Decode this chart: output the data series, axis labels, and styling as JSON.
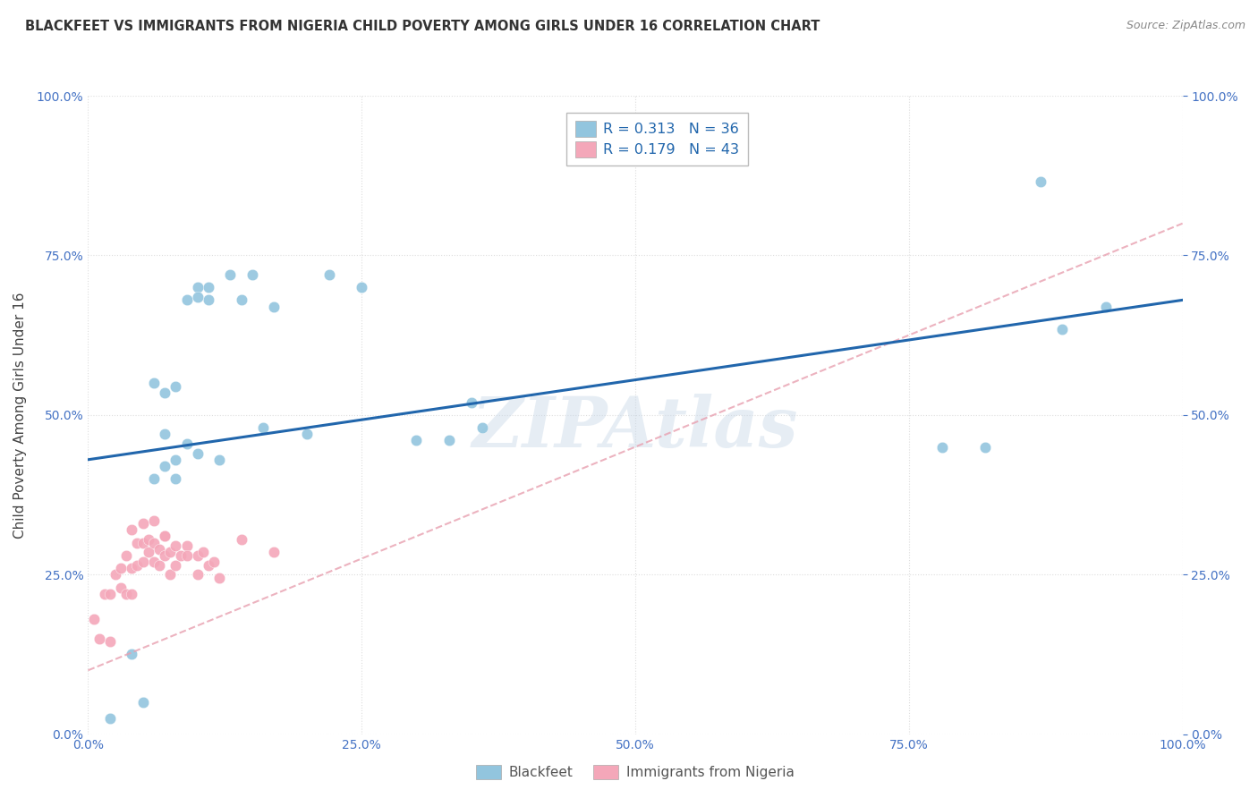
{
  "title": "BLACKFEET VS IMMIGRANTS FROM NIGERIA CHILD POVERTY AMONG GIRLS UNDER 16 CORRELATION CHART",
  "source": "Source: ZipAtlas.com",
  "ylabel": "Child Poverty Among Girls Under 16",
  "watermark": "ZIPAtlas",
  "blackfeet_R": 0.313,
  "blackfeet_N": 36,
  "nigeria_R": 0.179,
  "nigeria_N": 43,
  "blackfeet_color": "#92c5de",
  "nigeria_color": "#f4a7b9",
  "blackfeet_line_color": "#2166ac",
  "nigeria_line_color": "#f4a7b9",
  "background_color": "#ffffff",
  "xlim": [
    0,
    1
  ],
  "ylim": [
    0,
    1
  ],
  "blackfeet_x": [
    0.02,
    0.04,
    0.05,
    0.06,
    0.07,
    0.07,
    0.08,
    0.09,
    0.1,
    0.11,
    0.12,
    0.13,
    0.15,
    0.17,
    0.2,
    0.22,
    0.25,
    0.3,
    0.35,
    0.78,
    0.82,
    0.87,
    0.89,
    0.93,
    0.06,
    0.08,
    0.1,
    0.11,
    0.09,
    0.14,
    0.16,
    0.33,
    0.36,
    0.07,
    0.08,
    0.1
  ],
  "blackfeet_y": [
    0.025,
    0.125,
    0.05,
    0.55,
    0.42,
    0.47,
    0.43,
    0.455,
    0.7,
    0.7,
    0.43,
    0.72,
    0.72,
    0.67,
    0.47,
    0.72,
    0.7,
    0.46,
    0.52,
    0.45,
    0.45,
    0.865,
    0.635,
    0.67,
    0.4,
    0.4,
    0.44,
    0.68,
    0.68,
    0.68,
    0.48,
    0.46,
    0.48,
    0.535,
    0.545,
    0.685
  ],
  "nigeria_x": [
    0.005,
    0.01,
    0.015,
    0.02,
    0.02,
    0.025,
    0.03,
    0.03,
    0.035,
    0.035,
    0.04,
    0.04,
    0.04,
    0.045,
    0.045,
    0.05,
    0.05,
    0.05,
    0.055,
    0.055,
    0.06,
    0.06,
    0.06,
    0.065,
    0.065,
    0.07,
    0.07,
    0.07,
    0.075,
    0.075,
    0.08,
    0.08,
    0.085,
    0.09,
    0.09,
    0.1,
    0.1,
    0.105,
    0.11,
    0.115,
    0.12,
    0.14,
    0.17
  ],
  "nigeria_y": [
    0.18,
    0.15,
    0.22,
    0.22,
    0.145,
    0.25,
    0.23,
    0.26,
    0.22,
    0.28,
    0.26,
    0.22,
    0.32,
    0.265,
    0.3,
    0.3,
    0.27,
    0.33,
    0.285,
    0.305,
    0.3,
    0.27,
    0.335,
    0.265,
    0.29,
    0.31,
    0.28,
    0.31,
    0.25,
    0.285,
    0.265,
    0.295,
    0.28,
    0.295,
    0.28,
    0.28,
    0.25,
    0.285,
    0.265,
    0.27,
    0.245,
    0.305,
    0.285
  ]
}
